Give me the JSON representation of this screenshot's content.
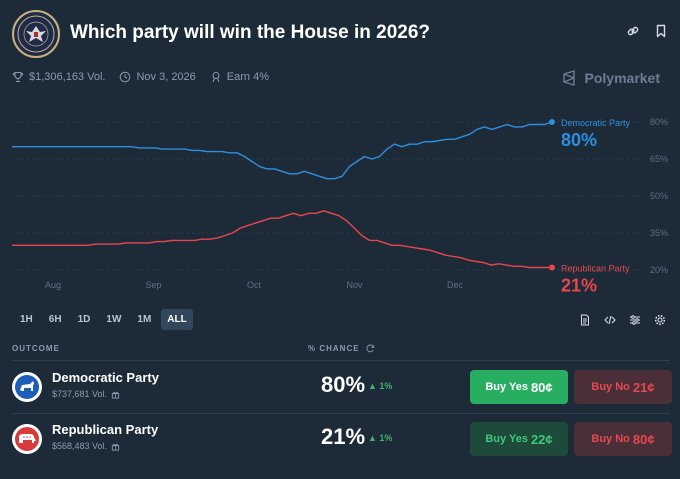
{
  "header": {
    "title": "Which party will win the House in 2026?",
    "seal_text": "U.S. HOUSE OF REPRESENTATIVES",
    "icons": [
      "link-icon",
      "bookmark-icon"
    ]
  },
  "meta": {
    "volume": "$1,306,163 Vol.",
    "date": "Nov 3, 2026",
    "earn": "Earn 4%"
  },
  "brand": {
    "name": "Polymarket"
  },
  "colors": {
    "democratic": "#2e8fe0",
    "republican": "#e9454c",
    "yes": "#27ae60"
  },
  "chart_data": {
    "type": "line",
    "x_ticks": [
      "Aug",
      "Sep",
      "Oct",
      "Nov",
      "Dec"
    ],
    "y_ticks": [
      "80%",
      "65%",
      "50%",
      "35%",
      "20%"
    ],
    "ylim": [
      20,
      80
    ],
    "grid": true,
    "series": [
      {
        "name": "Democratic Party",
        "last_label": "80%",
        "color": "#2e8fe0",
        "values": [
          70,
          70,
          70,
          70,
          70,
          70,
          70,
          70,
          70,
          70,
          70,
          70,
          70,
          70,
          70,
          70,
          70,
          69.5,
          69.5,
          69.5,
          69,
          69,
          69,
          69,
          68.5,
          68.5,
          68,
          68,
          68,
          67.5,
          67.5,
          66,
          64,
          62,
          61,
          61,
          60,
          59,
          59,
          60,
          59,
          58,
          57,
          57,
          58,
          62,
          64,
          66,
          65,
          66,
          69,
          71,
          70,
          71,
          71,
          72,
          72,
          72.5,
          73,
          73,
          74,
          75,
          77,
          78,
          77,
          78,
          79,
          78,
          78,
          79,
          79,
          79,
          80
        ]
      },
      {
        "name": "Republican Party",
        "last_label": "21%",
        "color": "#e9454c",
        "values": [
          30,
          30,
          30,
          30,
          30,
          30,
          30,
          30,
          30,
          30,
          30,
          30.5,
          30.5,
          30.5,
          30.5,
          31,
          31,
          31,
          31,
          31.5,
          31.5,
          32,
          32,
          32,
          32,
          32.5,
          32.5,
          33,
          34,
          35,
          37,
          38,
          39,
          40,
          41,
          41,
          42,
          43,
          42,
          43,
          43,
          44,
          43,
          42,
          40,
          37,
          34,
          32,
          32,
          31,
          30,
          30,
          29.5,
          29,
          28.5,
          28,
          27,
          26,
          25.5,
          25,
          24,
          23.5,
          23,
          22,
          22.5,
          22,
          21.5,
          21.5,
          21,
          21,
          21,
          21
        ]
      }
    ]
  },
  "ranges": {
    "buttons": [
      "1H",
      "6H",
      "1D",
      "1W",
      "1M",
      "ALL"
    ],
    "active": "ALL"
  },
  "tools": [
    "document-icon",
    "code-icon",
    "sliders-icon",
    "gear-icon"
  ],
  "table": {
    "col_outcome": "OUTCOME",
    "col_chance": "% CHANCE",
    "rows": [
      {
        "name": "Democratic Party",
        "volume": "$737,681 Vol.",
        "chance": "80%",
        "delta": "1%",
        "yes_label": "Buy Yes",
        "yes_price": "80¢",
        "no_label": "Buy No",
        "no_price": "21¢"
      },
      {
        "name": "Republican Party",
        "volume": "$568,483 Vol.",
        "chance": "21%",
        "delta": "1%",
        "yes_label": "Buy Yes",
        "yes_price": "22¢",
        "no_label": "Buy No",
        "no_price": "80¢"
      }
    ]
  }
}
